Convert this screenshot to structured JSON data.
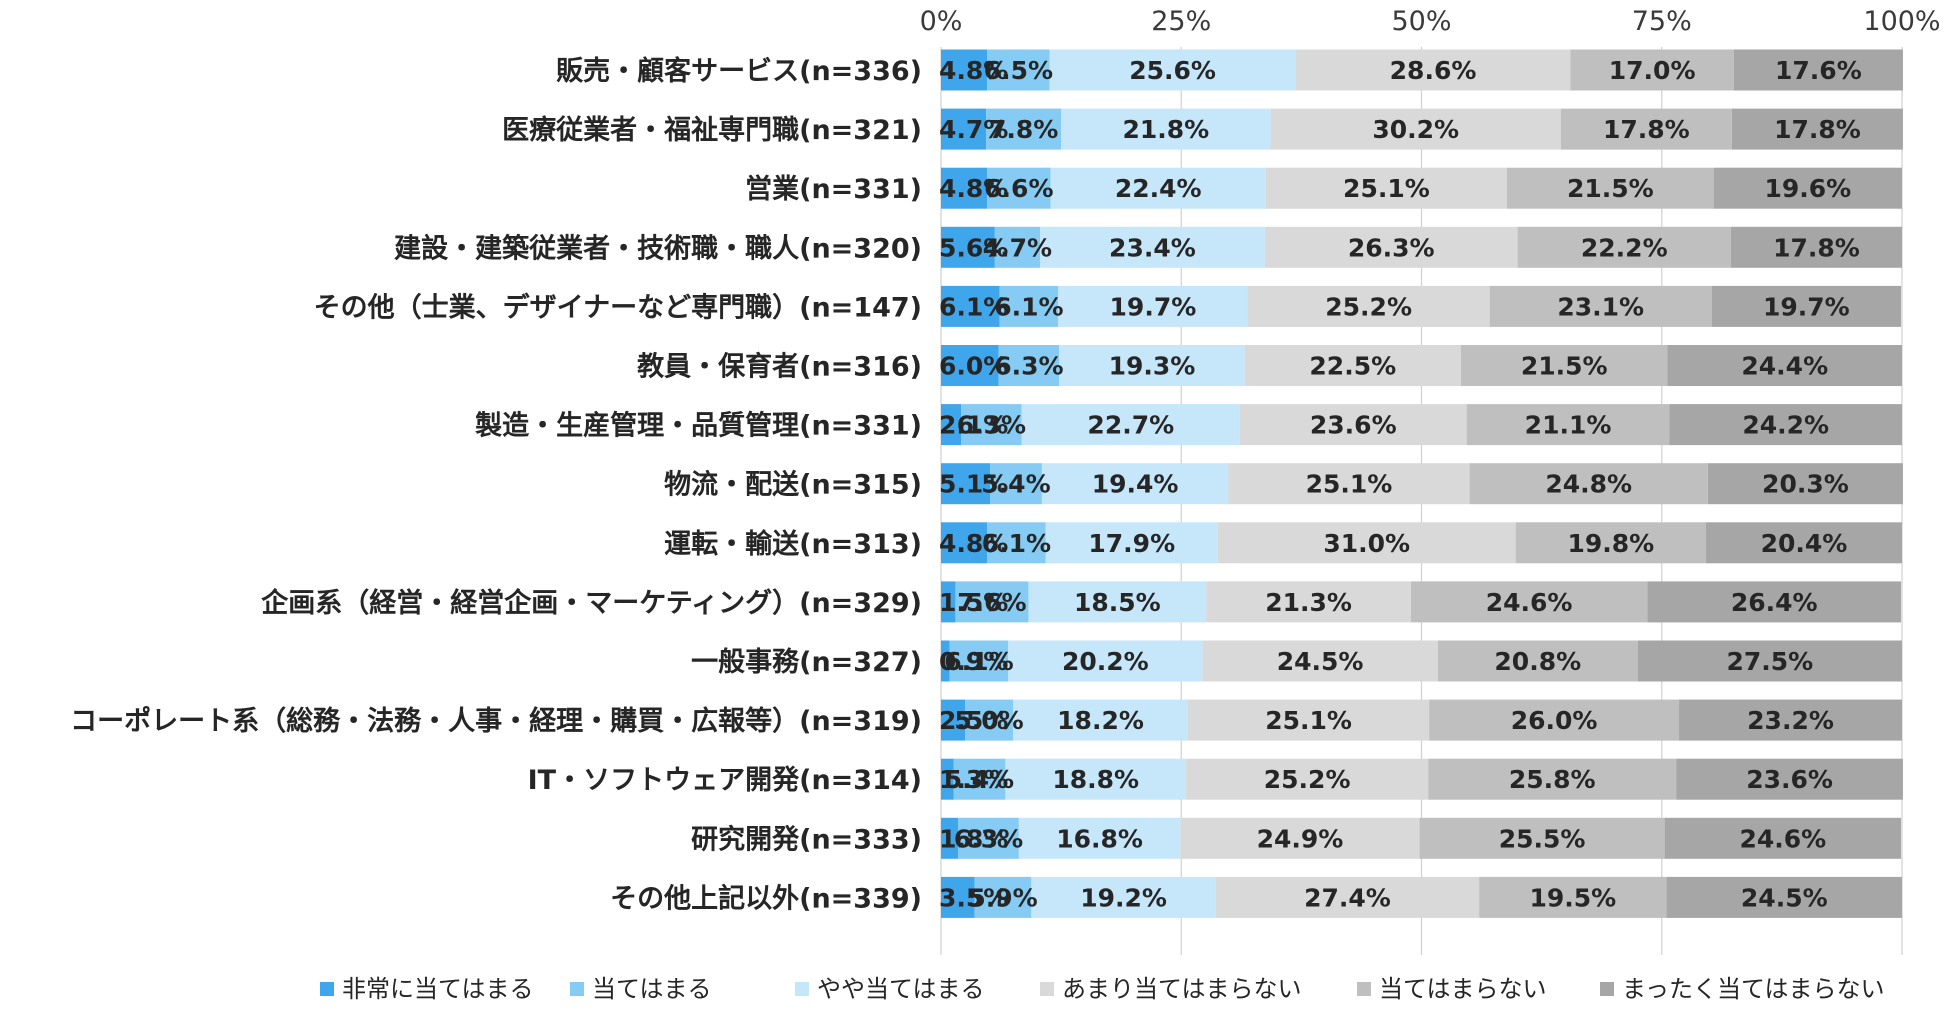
{
  "chart_data": {
    "type": "bar",
    "orientation": "horizontal",
    "stacked": "percent",
    "title": "",
    "xlabel": "",
    "ylabel": "",
    "xlim": [
      0,
      100
    ],
    "x_ticks": [
      "0%",
      "25%",
      "50%",
      "75%",
      "100%"
    ],
    "legend_position": "bottom",
    "categories": [
      "販売・顧客サービス(n=336)",
      "医療従業者・福祉専門職(n=321)",
      "営業(n=331)",
      "建設・建築従業者・技術職・職人(n=320)",
      "その他（士業、デザイナーなど専門職）(n=147)",
      "教員・保育者(n=316)",
      "製造・生産管理・品質管理(n=331)",
      "物流・配送(n=315)",
      "運転・輸送(n=313)",
      "企画系（経営・経営企画・マーケティング）(n=329)",
      "一般事務(n=327)",
      "コーポレート系（総務・法務・人事・経理・購買・広報等）(n=319)",
      "IT・ソフトウェア開発(n=314)",
      "研究開発(n=333)",
      "その他上記以外(n=339)"
    ],
    "series": [
      {
        "name": "非常に当てはまる",
        "color": "#3fa6ec",
        "values": [
          4.8,
          4.7,
          4.8,
          5.6,
          6.1,
          6.0,
          2.1,
          5.1,
          4.8,
          1.5,
          0.9,
          2.5,
          1.3,
          1.8,
          3.5
        ]
      },
      {
        "name": "当てはまる",
        "color": "#86cbf3",
        "values": [
          6.5,
          7.8,
          6.6,
          4.7,
          6.1,
          6.3,
          6.3,
          5.4,
          6.1,
          7.6,
          6.1,
          5.0,
          5.4,
          6.3,
          5.9
        ]
      },
      {
        "name": "やや当てはまる",
        "color": "#c6e6fa",
        "values": [
          25.6,
          21.8,
          22.4,
          23.4,
          19.7,
          19.3,
          22.7,
          19.4,
          17.9,
          18.5,
          20.2,
          18.2,
          18.8,
          16.8,
          19.2
        ]
      },
      {
        "name": "あまり当てはまらない",
        "color": "#d9d9d9",
        "values": [
          28.6,
          30.2,
          25.1,
          26.3,
          25.2,
          22.5,
          23.6,
          25.1,
          31.0,
          21.3,
          24.5,
          25.1,
          25.2,
          24.9,
          27.4
        ]
      },
      {
        "name": "当てはまらない",
        "color": "#bfbfbf",
        "values": [
          17.0,
          17.8,
          21.5,
          22.2,
          23.1,
          21.5,
          21.1,
          24.8,
          19.8,
          24.6,
          20.8,
          26.0,
          25.8,
          25.5,
          19.5
        ]
      },
      {
        "name": "まったく当てはまらない",
        "color": "#a6a6a6",
        "values": [
          17.6,
          17.8,
          19.6,
          17.8,
          19.7,
          24.4,
          24.2,
          20.3,
          20.4,
          26.4,
          27.5,
          23.2,
          23.6,
          24.6,
          24.5
        ]
      }
    ]
  }
}
